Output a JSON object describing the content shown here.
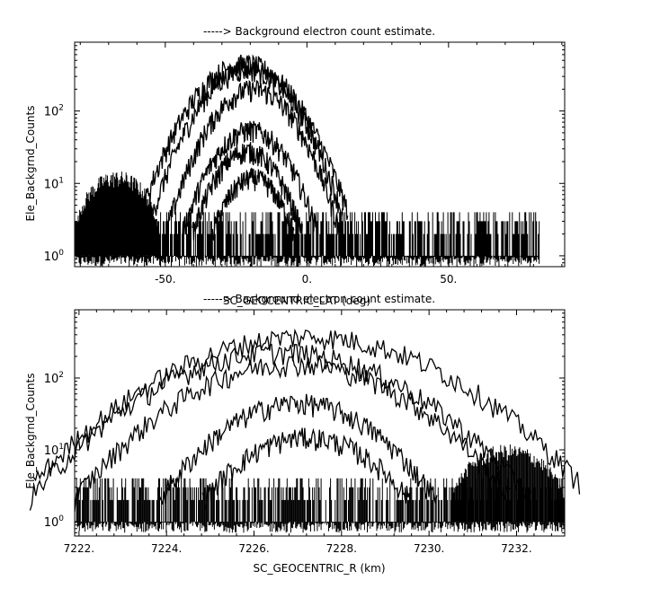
{
  "chart_data": [
    {
      "type": "scatter",
      "title": "-----> Background electron count estimate.",
      "xlabel": "SC_GEOCENTRIC_LAT (deg)",
      "ylabel": "Ele_Backgrnd_Counts",
      "xlim": [
        -82,
        91
      ],
      "ylim_log10": [
        -0.15,
        2.95
      ],
      "yscale": "log",
      "grid": false,
      "x_ticks": [
        -50,
        0,
        50
      ],
      "x_tick_labels": [
        "-50.",
        "0.",
        "50."
      ],
      "y_ticks": [
        1,
        10,
        100
      ],
      "y_tick_labels": [
        {
          "base": "10",
          "exp": "0"
        },
        {
          "base": "10",
          "exp": "1"
        },
        {
          "base": "10",
          "exp": "2"
        }
      ],
      "x_range_of_data": [
        -82,
        82
      ],
      "noise_floor_max": 4,
      "background_hump": {
        "x_range": [
          -82,
          -52
        ],
        "peak": 15
      },
      "series": [
        {
          "peak_x": -22,
          "peak": 450,
          "width": 14
        },
        {
          "peak_x": -21,
          "peak": 380,
          "width": 13
        },
        {
          "peak_x": -19,
          "peak": 200,
          "width": 12
        },
        {
          "peak_x": -20,
          "peak": 55,
          "width": 11
        },
        {
          "peak_x": -21,
          "peak": 28,
          "width": 10
        },
        {
          "peak_x": -19,
          "peak": 12,
          "width": 9
        }
      ]
    },
    {
      "type": "scatter",
      "title": "-----> Background electron count estimate.",
      "xlabel": "SC_GEOCENTRIC_R (km)",
      "ylabel": "Ele_Backgrnd_Counts",
      "xlim": [
        7221.9,
        7233.1
      ],
      "ylim_log10": [
        -0.2,
        2.95
      ],
      "yscale": "log",
      "grid": false,
      "x_ticks": [
        7222,
        7224,
        7226,
        7228,
        7230,
        7232
      ],
      "x_tick_labels": [
        "7222.",
        "7224.",
        "7226.",
        "7228.",
        "7230.",
        "7232."
      ],
      "y_ticks": [
        1,
        10,
        100
      ],
      "y_tick_labels": [
        {
          "base": "10",
          "exp": "0"
        },
        {
          "base": "10",
          "exp": "1"
        },
        {
          "base": "10",
          "exp": "2"
        }
      ],
      "x_range_of_data": [
        7221.9,
        7233.1
      ],
      "noise_floor_max": 4,
      "background_hump": {
        "x_range": [
          7230.5,
          7233.1
        ],
        "peak": 12
      },
      "series": [
        {
          "peak_x": 7227.2,
          "peak": 380,
          "width": 2.4
        },
        {
          "peak_x": 7226.6,
          "peak": 230,
          "width": 2.2
        },
        {
          "peak_x": 7226.9,
          "peak": 160,
          "width": 2.0
        },
        {
          "peak_x": 7227.0,
          "peak": 45,
          "width": 1.5
        },
        {
          "peak_x": 7227.2,
          "peak": 15,
          "width": 1.4
        }
      ]
    }
  ]
}
